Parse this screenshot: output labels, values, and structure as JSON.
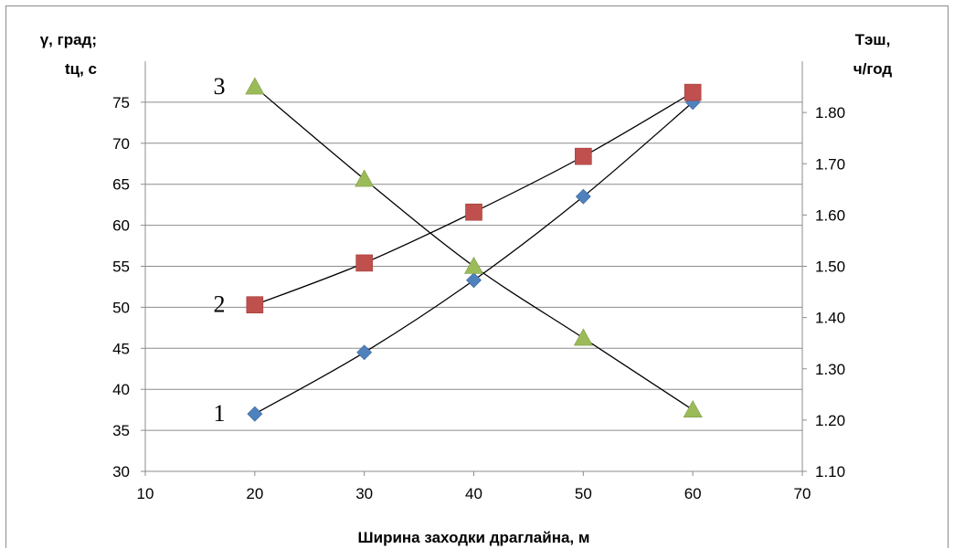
{
  "chart_data": {
    "type": "scatter",
    "title": "",
    "xlabel": "Ширина заходки драглайна,  м",
    "ylabel_left_lines": [
      "γ, град;",
      "tц, с"
    ],
    "ylabel_right_lines": [
      "Тэш,",
      "ч/год"
    ],
    "xlim": [
      10,
      70
    ],
    "x_ticks": [
      10,
      20,
      30,
      40,
      50,
      60,
      70
    ],
    "ylim_left": [
      30,
      80
    ],
    "y_ticks_left": [
      30,
      35,
      40,
      45,
      50,
      55,
      60,
      65,
      70,
      75
    ],
    "ylim_right": [
      1.1,
      1.9
    ],
    "y_ticks_right": [
      "1.10",
      "1.20",
      "1.30",
      "1.40",
      "1.50",
      "1.60",
      "1.70",
      "1.80"
    ],
    "grid": "horizontal",
    "legend": "none",
    "series": [
      {
        "label": "1",
        "axis": "left",
        "marker": "diamond",
        "color": "#4f81bd",
        "x": [
          20,
          30,
          40,
          50,
          60
        ],
        "y": [
          37,
          44.5,
          53.3,
          63.5,
          75
        ]
      },
      {
        "label": "2",
        "axis": "left",
        "marker": "square",
        "color": "#c0504d",
        "x": [
          20,
          30,
          40,
          50,
          60
        ],
        "y": [
          50.3,
          55.4,
          61.6,
          68.4,
          76.2
        ]
      },
      {
        "label": "3",
        "axis": "right",
        "marker": "triangle",
        "color": "#9bbb59",
        "x": [
          20,
          30,
          40,
          50,
          60
        ],
        "y": [
          1.85,
          1.67,
          1.5,
          1.36,
          1.22
        ]
      }
    ]
  }
}
